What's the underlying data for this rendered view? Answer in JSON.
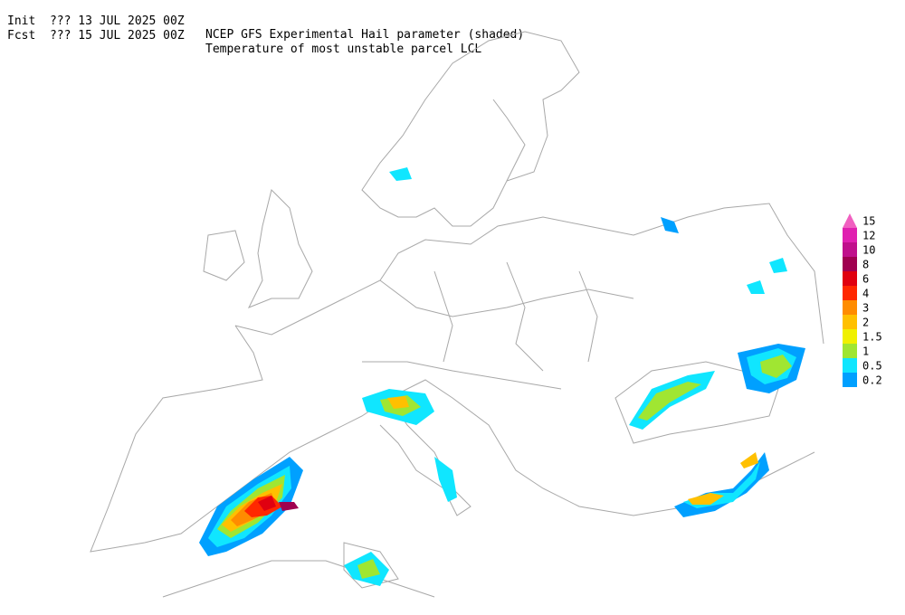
{
  "header": {
    "rows": [
      [
        "Init  ??? 13 JUL 2025 00Z",
        "NCEP GFS Experimental Hail parameter (shaded)"
      ],
      [
        "Fcst  ??? 15 JUL 2025 00Z",
        "Temperature of most unstable parcel LCL"
      ]
    ]
  },
  "legend": {
    "items": [
      {
        "label": "15",
        "color": "#f060c0"
      },
      {
        "label": "12",
        "color": "#e020b0"
      },
      {
        "label": "10",
        "color": "#c0108c"
      },
      {
        "label": "8",
        "color": "#a00050"
      },
      {
        "label": "6",
        "color": "#e00010"
      },
      {
        "label": "4",
        "color": "#ff2800"
      },
      {
        "label": "3",
        "color": "#ff8c00"
      },
      {
        "label": "2",
        "color": "#ffc000"
      },
      {
        "label": "1.5",
        "color": "#f0f000"
      },
      {
        "label": "1",
        "color": "#a0e632"
      },
      {
        "label": "0.5",
        "color": "#10e6ff"
      },
      {
        "label": "0.2",
        "color": "#00a0ff"
      }
    ]
  }
}
